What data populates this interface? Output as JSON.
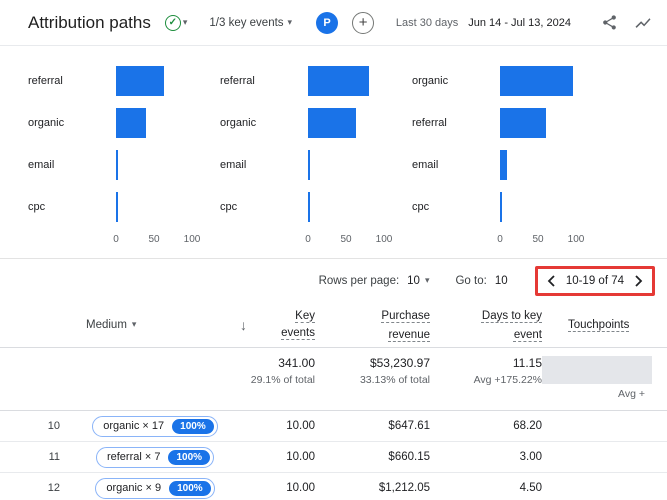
{
  "colors": {
    "accent_blue": "#1a73e8",
    "check_green": "#1e8e3e",
    "annotation_red": "#e53935",
    "highlight_gray": "#e4e6ea"
  },
  "header": {
    "title": "Attribution paths",
    "key_events_label": "1/3 key events",
    "avatar_letter": "P",
    "date_preset": "Last 30 days",
    "date_range": "Jun 14 - Jul 13, 2024"
  },
  "chart_data": [
    {
      "type": "bar",
      "orientation": "horizontal",
      "title": "",
      "categories": [
        "referral",
        "organic",
        "email",
        "cpc"
      ],
      "values": [
        63,
        39,
        3,
        1
      ],
      "xlim": [
        0,
        100
      ],
      "x_ticks": [
        "0",
        "50",
        "100"
      ]
    },
    {
      "type": "bar",
      "orientation": "horizontal",
      "title": "",
      "categories": [
        "referral",
        "organic",
        "email",
        "cpc"
      ],
      "values": [
        80,
        63,
        3,
        1
      ],
      "xlim": [
        0,
        100
      ],
      "x_ticks": [
        "0",
        "50",
        "100"
      ]
    },
    {
      "type": "bar",
      "orientation": "horizontal",
      "title": "",
      "categories": [
        "organic",
        "referral",
        "email",
        "cpc"
      ],
      "values": [
        96,
        60,
        9,
        1
      ],
      "xlim": [
        0,
        100
      ],
      "x_ticks": [
        "0",
        "50",
        "100"
      ]
    }
  ],
  "pagination": {
    "rows_per_page_label": "Rows per page:",
    "rows_per_page_value": "10",
    "go_to_label": "Go to:",
    "go_to_value": "10",
    "range_text": "10-19 of 74"
  },
  "table": {
    "medium_header": "Medium",
    "columns": [
      "Key\nevents",
      "Purchase\nrevenue",
      "Days to key\nevent",
      "Touchpoints"
    ],
    "summary": {
      "key_events": "341.00",
      "key_events_sub": "29.1% of total",
      "purchase_revenue": "$53,230.97",
      "purchase_revenue_sub": "33.13% of total",
      "days_to_key_event": "11.15",
      "days_sub": "Avg +175.22%",
      "touchpoints_sub": "Avg +"
    },
    "rows": [
      {
        "index": "10",
        "path": "organic × 17",
        "badge": "100%",
        "key_events": "10.00",
        "purchase_revenue": "$647.61",
        "days": "68.20"
      },
      {
        "index": "11",
        "path": "referral × 7",
        "badge": "100%",
        "key_events": "10.00",
        "purchase_revenue": "$660.15",
        "days": "3.00"
      },
      {
        "index": "12",
        "path": "organic × 9",
        "badge": "100%",
        "key_events": "10.00",
        "purchase_revenue": "$1,212.05",
        "days": "4.50"
      }
    ]
  }
}
